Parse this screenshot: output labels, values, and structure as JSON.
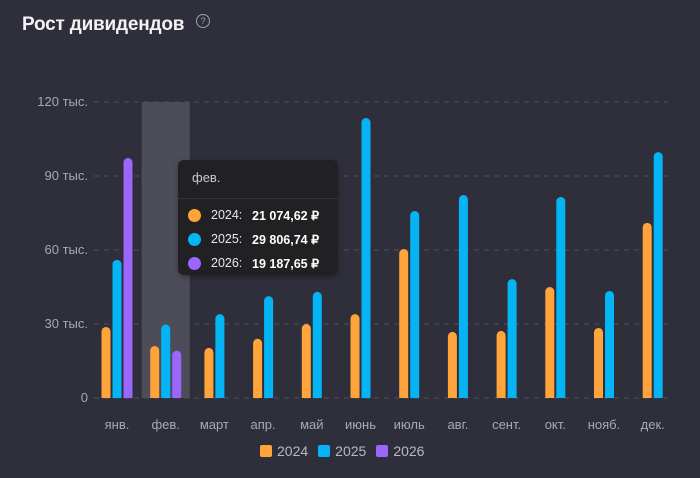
{
  "header": {
    "title": "Рост дивидендов",
    "help_icon": "question-circle-icon",
    "help_glyph": "?"
  },
  "tooltip": {
    "month": "фев.",
    "rows": [
      {
        "year": "2024:",
        "value": "21 074,62 ₽",
        "color": "#ffa43a"
      },
      {
        "year": "2025:",
        "value": "29 806,74 ₽",
        "color": "#05b4f5"
      },
      {
        "year": "2026:",
        "value": "19 187,65 ₽",
        "color": "#9b66fb"
      }
    ]
  },
  "chart_data": {
    "type": "bar",
    "title": "Рост дивидендов",
    "xlabel": "",
    "ylabel": "",
    "ylim": [
      0,
      120000
    ],
    "yticks": [
      0,
      30000,
      60000,
      90000,
      120000
    ],
    "ytick_labels": [
      "0",
      "30 тыс.",
      "60 тыс.",
      "90 тыс.",
      "120 тыс."
    ],
    "grid": true,
    "legend_position": "bottom-center",
    "highlighted_category": "фев.",
    "categories": [
      "янв.",
      "фев.",
      "март",
      "апр.",
      "май",
      "июнь",
      "июль",
      "авг.",
      "сент.",
      "окт.",
      "нояб.",
      "дек."
    ],
    "series": [
      {
        "name": "2024",
        "color": "#ffa43a",
        "values": [
          28800,
          21074.62,
          20300,
          24000,
          30000,
          34000,
          60400,
          26800,
          27200,
          45000,
          28400,
          71000
        ]
      },
      {
        "name": "2025",
        "color": "#05b4f5",
        "values": [
          56000,
          29806.74,
          34000,
          41300,
          43000,
          113500,
          75800,
          82300,
          48200,
          81500,
          43400,
          99700
        ]
      },
      {
        "name": "2026",
        "color": "#9b66fb",
        "values": [
          97300,
          19187.65,
          null,
          null,
          null,
          null,
          null,
          null,
          null,
          null,
          null,
          null
        ]
      }
    ]
  }
}
